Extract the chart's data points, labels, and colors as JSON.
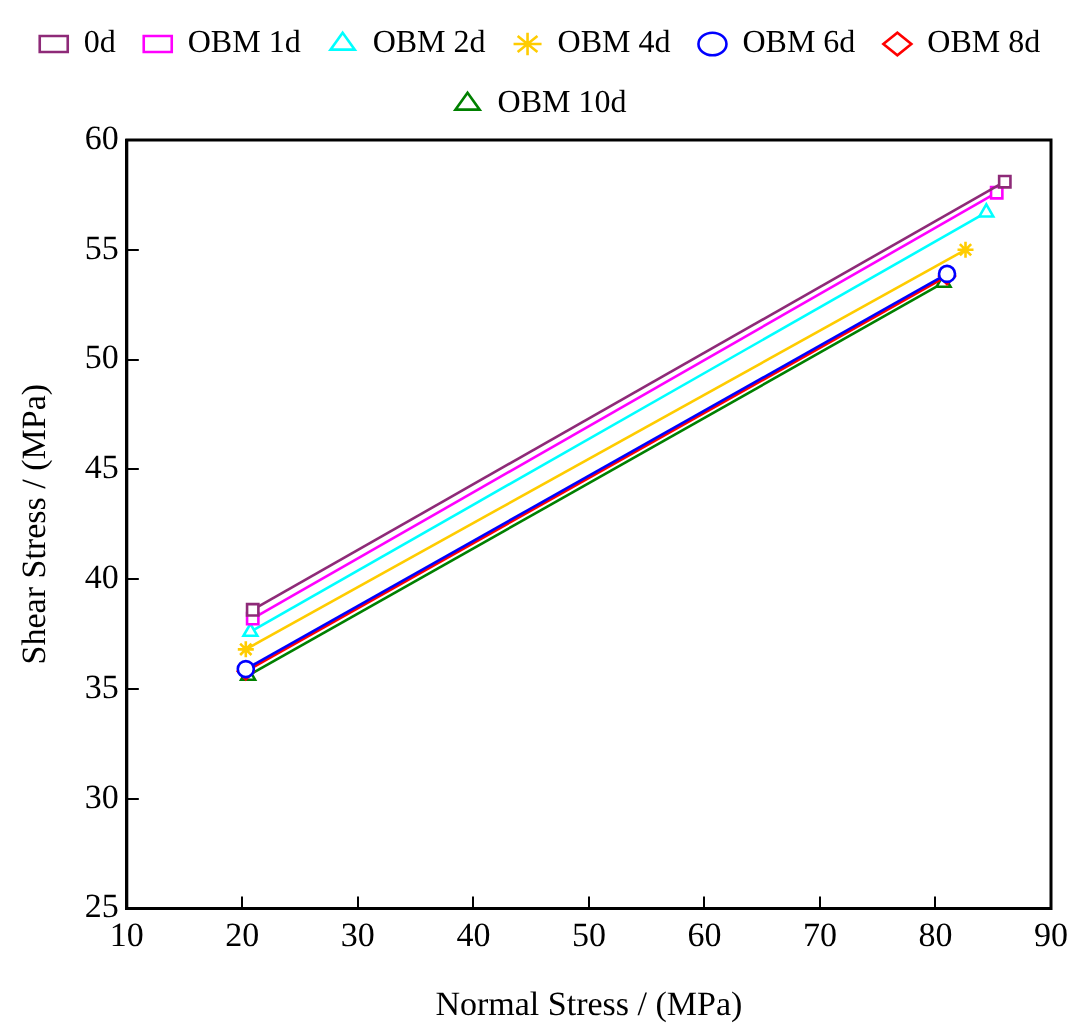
{
  "chart_data": {
    "type": "line",
    "xlabel": "Normal Stress / (MPa)",
    "ylabel": "Shear Stress / (MPa)",
    "xlim": [
      10,
      90
    ],
    "xticks": [
      10,
      20,
      30,
      40,
      50,
      60,
      70,
      80,
      90
    ],
    "ylim": [
      25,
      60
    ],
    "yticks": [
      25,
      30,
      35,
      40,
      45,
      50,
      55,
      60
    ],
    "grid": false,
    "legend": "top",
    "line_style": "solid",
    "series": [
      {
        "name": "0d",
        "color": "#8e2a78",
        "marker": "square",
        "x": [
          20.9,
          86.0
        ],
        "values": [
          38.6,
          58.1
        ]
      },
      {
        "name": "OBM 1d",
        "color": "#ff00ff",
        "marker": "square",
        "x": [
          20.9,
          85.3
        ],
        "values": [
          38.2,
          57.6
        ]
      },
      {
        "name": "OBM 2d",
        "color": "#00ffff",
        "marker": "triangle",
        "x": [
          20.7,
          84.4
        ],
        "values": [
          37.6,
          56.7
        ]
      },
      {
        "name": "OBM 4d",
        "color": "#ffcc00",
        "marker": "cross",
        "x": [
          20.3,
          82.6
        ],
        "values": [
          36.8,
          55.0
        ]
      },
      {
        "name": "OBM 6d",
        "color": "#0000ff",
        "marker": "circle",
        "x": [
          20.3,
          81.0
        ],
        "values": [
          35.9,
          53.9
        ]
      },
      {
        "name": "OBM 8d",
        "color": "#ff0000",
        "marker": "diamond",
        "x": [
          20.3,
          81.0
        ],
        "values": [
          35.8,
          53.8
        ]
      },
      {
        "name": "OBM 10d",
        "color": "#008000",
        "marker": "triangle",
        "x": [
          20.5,
          80.7
        ],
        "values": [
          35.6,
          53.5
        ]
      }
    ]
  }
}
